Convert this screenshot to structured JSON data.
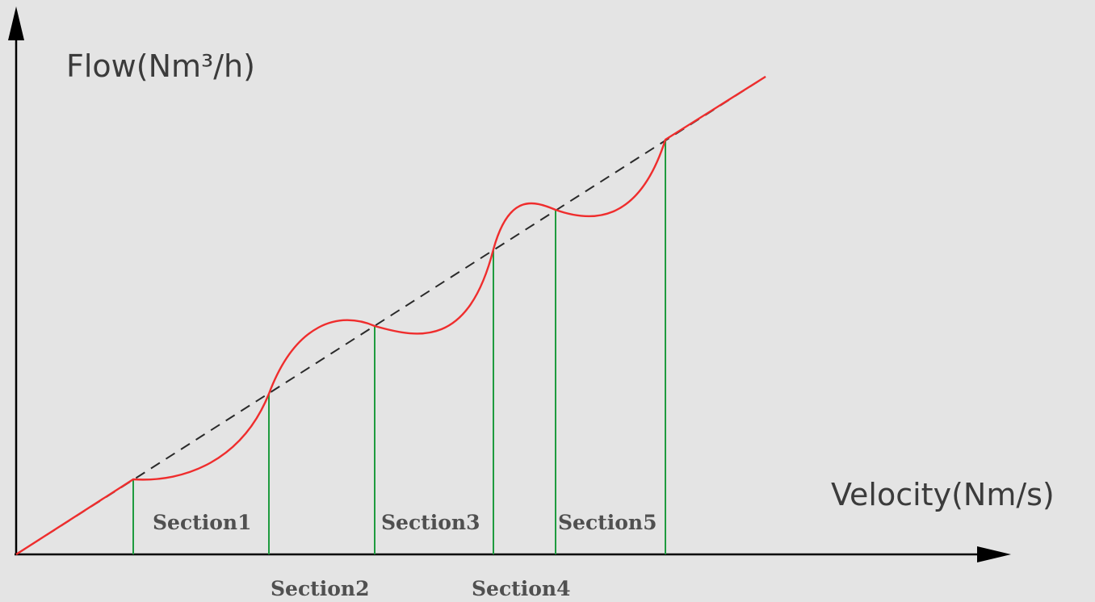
{
  "diagram": {
    "y_axis_label": "Flow(Nm³/h)",
    "x_axis_label": "Velocity(Nm/s)",
    "sections": [
      {
        "label": "Section1"
      },
      {
        "label": "Section2"
      },
      {
        "label": "Section3"
      },
      {
        "label": "Section4"
      },
      {
        "label": "Section5"
      }
    ],
    "colors": {
      "background": "#e4e4e4",
      "axes": "#000000",
      "ideal_line": "#2a2a2a",
      "actual_curve": "#ef2d2d",
      "section_dividers": "#1f9b3f"
    }
  }
}
